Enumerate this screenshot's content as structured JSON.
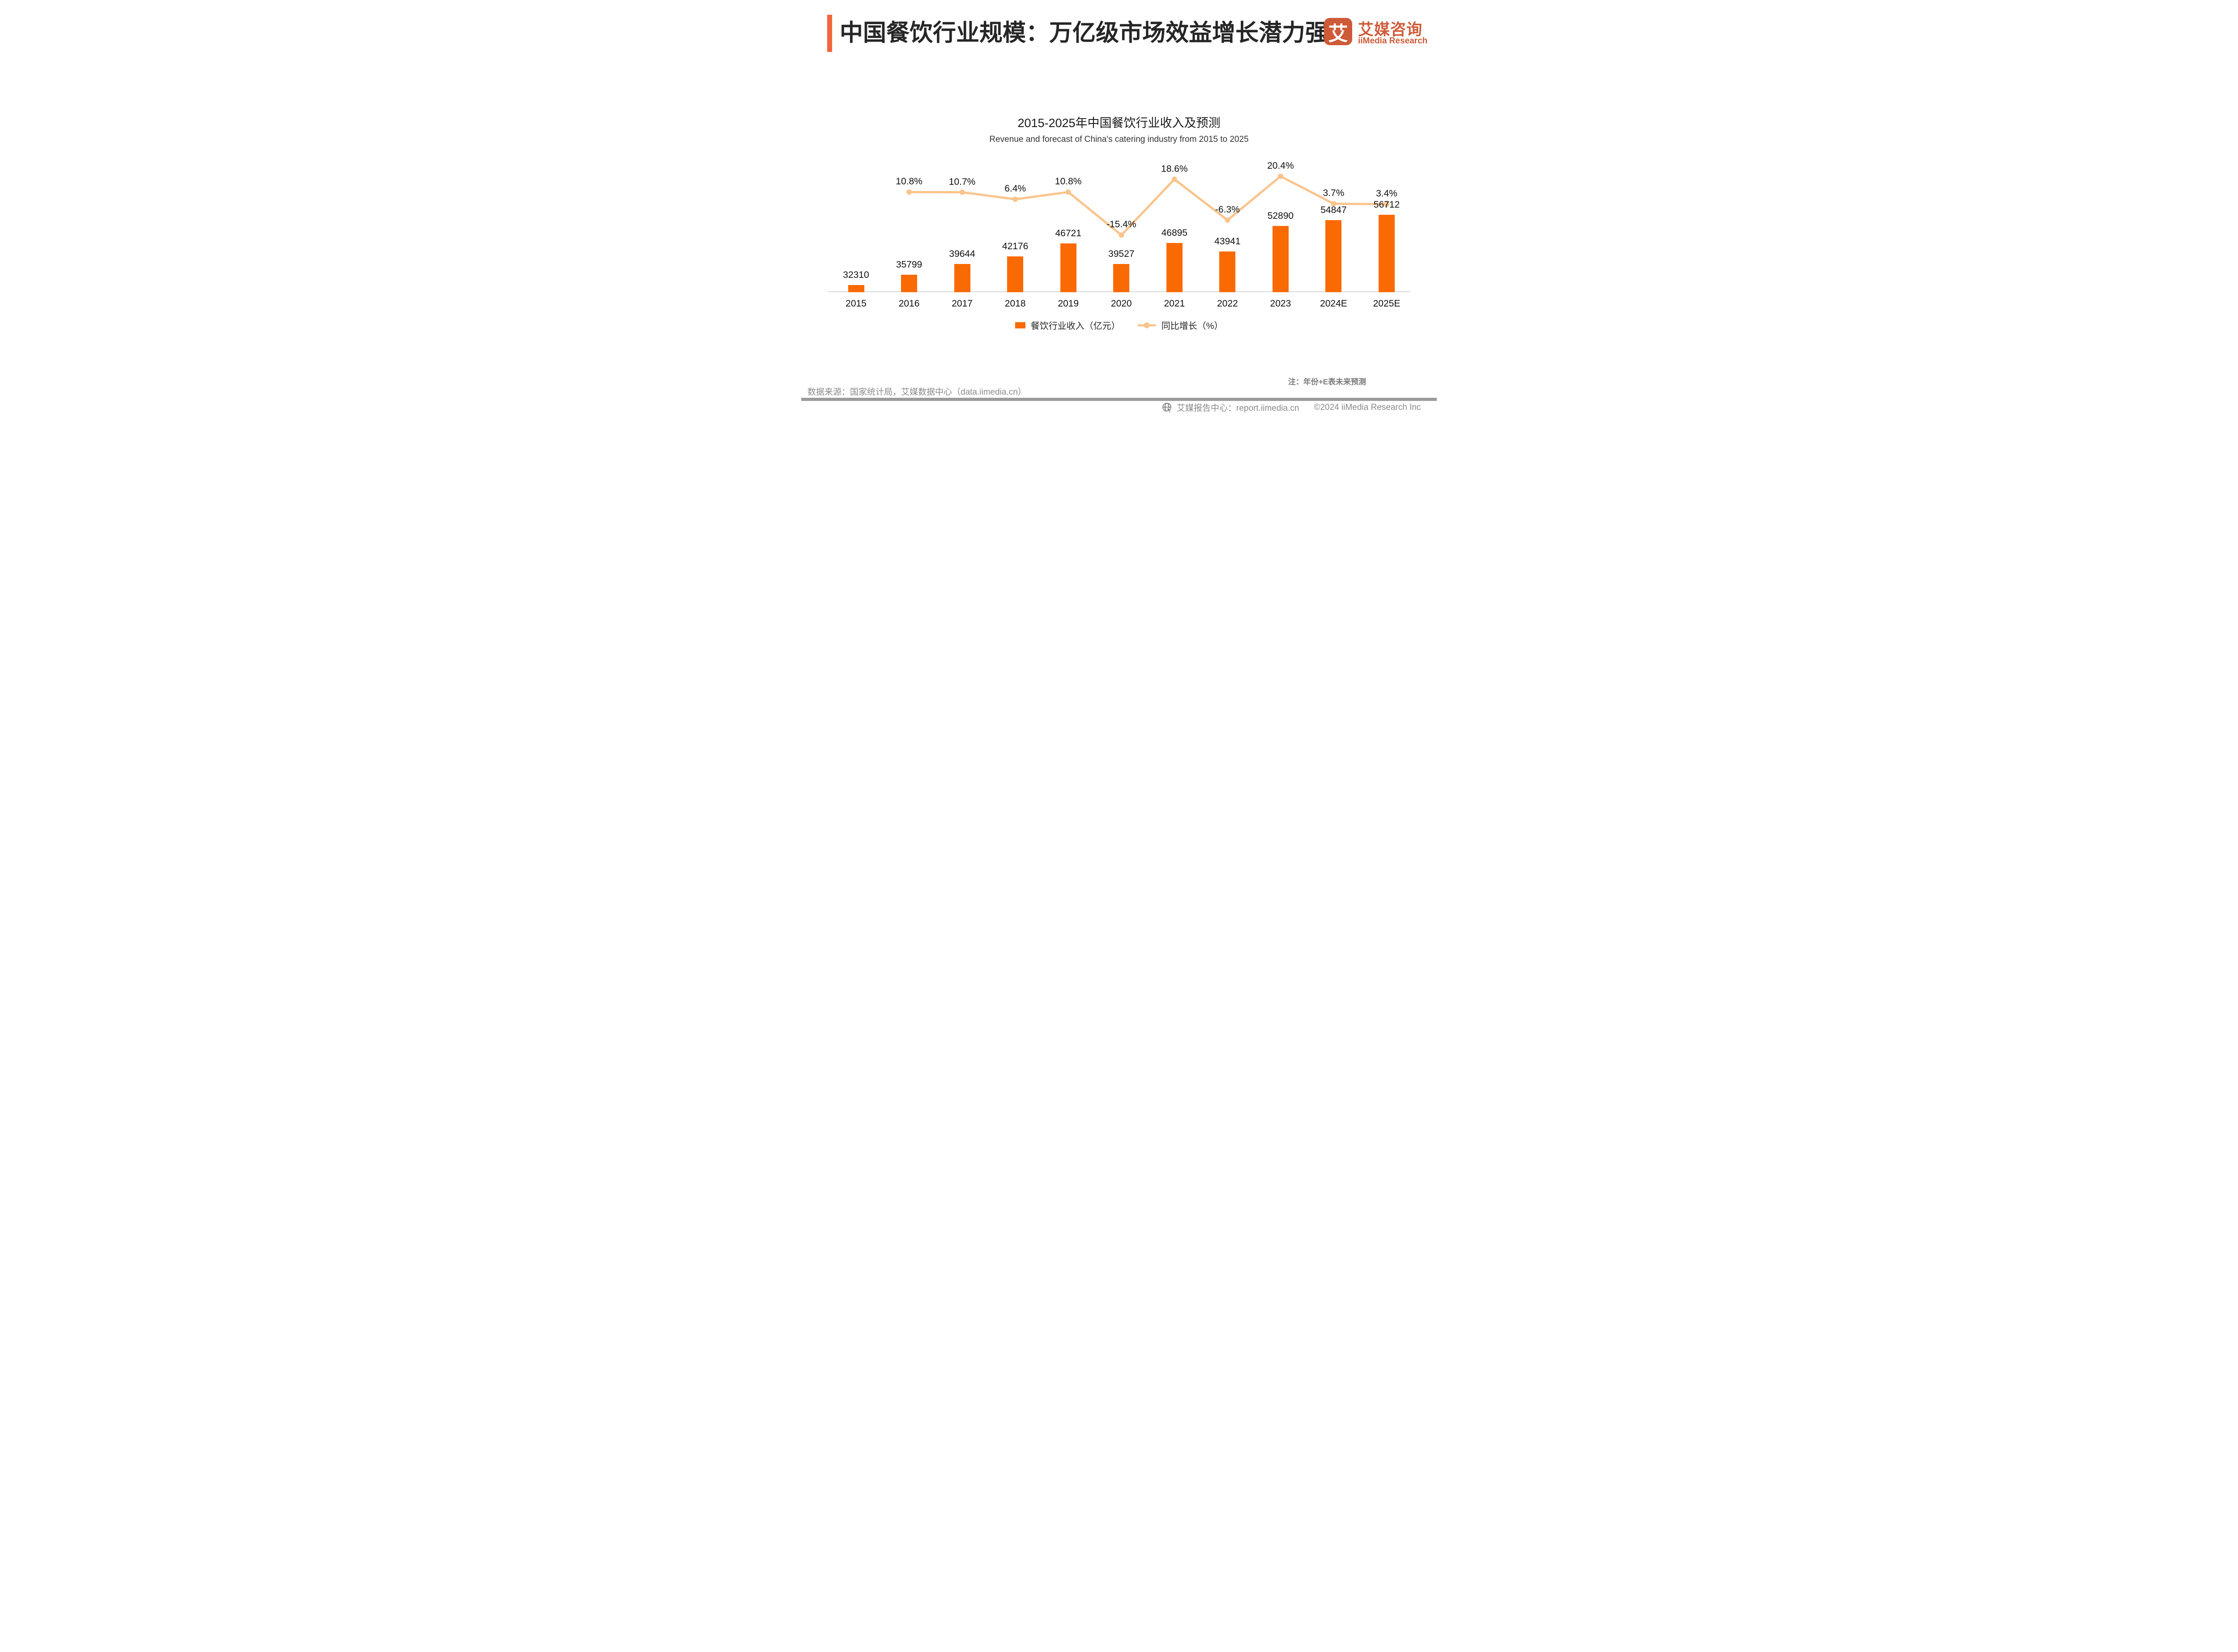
{
  "header": {
    "title": "中国餐饮行业规模：万亿级市场效益增长潜力强劲"
  },
  "logo": {
    "icon_char": "艾",
    "cn": "艾媒咨询",
    "en": "iiMedia Research"
  },
  "chart": {
    "title": "2015-2025年中国餐饮行业收入及预测",
    "subtitle": "Revenue and forecast of China's catering industry from 2015 to 2025",
    "legend": {
      "bar": "餐饮行业收入（亿元）",
      "line": "同比增长（%）"
    },
    "note": "注：年份+E表未来预测"
  },
  "chart_data": {
    "type": "bar+line",
    "title": "2015-2025年中国餐饮行业收入及预测",
    "subtitle": "Revenue and forecast of China's catering industry from 2015 to 2025",
    "categories": [
      "2015",
      "2016",
      "2017",
      "2018",
      "2019",
      "2020",
      "2021",
      "2022",
      "2023",
      "2024E",
      "2025E"
    ],
    "series": [
      {
        "name": "餐饮行业收入（亿元）",
        "type": "bar",
        "values": [
          32310,
          35799,
          39644,
          42176,
          46721,
          39527,
          46895,
          43941,
          52890,
          54847,
          56712
        ]
      },
      {
        "name": "同比增长（%）",
        "type": "line",
        "values": [
          null,
          10.8,
          10.7,
          6.4,
          10.8,
          -15.4,
          18.6,
          -6.3,
          20.4,
          3.7,
          3.4
        ]
      }
    ],
    "value_labels_shown": true,
    "gridlines": false,
    "value_axis_shown": false,
    "legend_position": "bottom"
  },
  "footer": {
    "source": "数据来源：国家统计局，艾媒数据中心（data.iimedia.cn）",
    "report_center": "艾媒报告中心：report.iimedia.cn",
    "copyright": "©2024  iiMedia Research  Inc"
  },
  "colors": {
    "bar": "#FA6A02",
    "line": "#FAC48D",
    "accent": "#F2653C",
    "logo": "#CE5A38",
    "axis": "#D9D9D9",
    "gray_text": "#8c8c8c",
    "divider": "#9b9b9b",
    "label_text": "#111111"
  }
}
